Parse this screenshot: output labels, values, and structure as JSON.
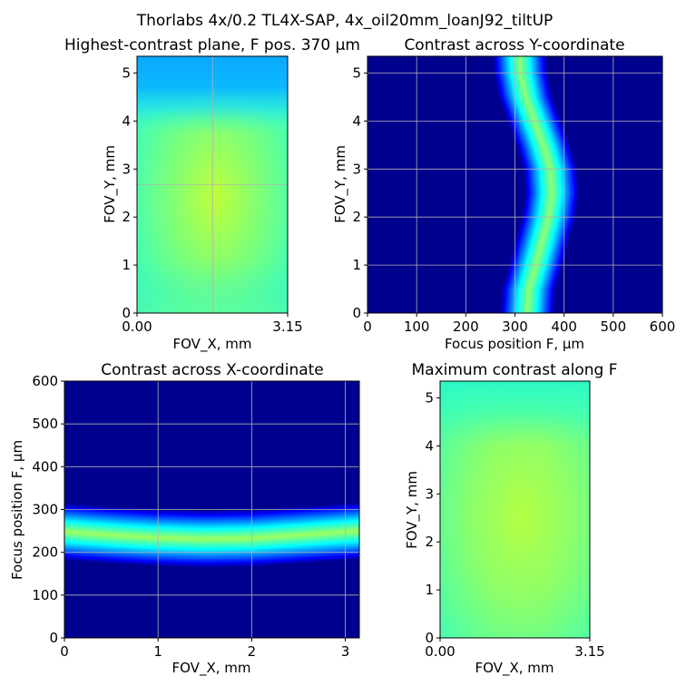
{
  "figure": {
    "suptitle": "Thorlabs 4x/0.2 TL4X-SAP, 4x_oil20mm_loanJ92_tiltUP"
  },
  "colors": {
    "jet_dark_blue": "#00008f",
    "jet_blue": "#0000ff",
    "jet_cyan": "#00ffff",
    "jet_green_yellow": "#a0ff50",
    "grid": "#b0b0b0"
  },
  "chart_data": [
    {
      "type": "heatmap",
      "title": "Highest-contrast plane, F pos. 370 μm",
      "xlabel": "FOV_X, mm",
      "ylabel": "FOV_Y, mm",
      "xlim": [
        0,
        3.15
      ],
      "ylim": [
        0,
        5.35
      ],
      "x_ticks": [
        "0.00",
        "3.15"
      ],
      "y_ticks": [
        "0",
        "1",
        "2",
        "3",
        "4",
        "5"
      ],
      "grid": false,
      "colormap": "jet",
      "crosshair": {
        "x": 1.58,
        "y": 2.68
      },
      "field": {
        "description_values": "normalized contrast 0-1",
        "center": [
          1.45,
          2.5
        ],
        "center_value": 0.66,
        "edge_value": 0.45,
        "top_band_value": 0.3
      }
    },
    {
      "type": "heatmap",
      "title": "Contrast across Y-coordinate",
      "xlabel": "Focus position F, μm",
      "ylabel": "FOV_Y, mm",
      "xlim": [
        0,
        600
      ],
      "ylim": [
        0,
        5.35
      ],
      "x_ticks": [
        "0",
        "100",
        "200",
        "300",
        "400",
        "500",
        "600"
      ],
      "y_ticks": [
        "0",
        "1",
        "2",
        "3",
        "4",
        "5"
      ],
      "grid": true,
      "colormap": "jet",
      "focus_peak_vs_y": [
        {
          "y": 0.0,
          "f": 325
        },
        {
          "y": 0.5,
          "f": 328
        },
        {
          "y": 1.0,
          "f": 342
        },
        {
          "y": 1.5,
          "f": 355
        },
        {
          "y": 2.0,
          "f": 368
        },
        {
          "y": 2.5,
          "f": 375
        },
        {
          "y": 3.0,
          "f": 372
        },
        {
          "y": 3.5,
          "f": 358
        },
        {
          "y": 4.0,
          "f": 340
        },
        {
          "y": 4.5,
          "f": 322
        },
        {
          "y": 5.0,
          "f": 312
        },
        {
          "y": 5.35,
          "f": 310
        }
      ],
      "band_halfwidth_um": 48
    },
    {
      "type": "heatmap",
      "title": "Contrast across X-coordinate",
      "xlabel": "FOV_X, mm",
      "ylabel": "Focus position F, μm",
      "xlim": [
        0,
        3.15
      ],
      "ylim": [
        0,
        600
      ],
      "x_ticks": [
        "0",
        "1",
        "2",
        "3"
      ],
      "y_ticks": [
        "0",
        "100",
        "200",
        "300",
        "400",
        "500",
        "600"
      ],
      "grid": true,
      "colormap": "jet",
      "focus_peak_vs_x": [
        {
          "x": 0.0,
          "f": 248
        },
        {
          "x": 0.5,
          "f": 240
        },
        {
          "x": 1.0,
          "f": 234
        },
        {
          "x": 1.5,
          "f": 231
        },
        {
          "x": 2.0,
          "f": 233
        },
        {
          "x": 2.5,
          "f": 240
        },
        {
          "x": 3.15,
          "f": 250
        }
      ],
      "band_halfwidth_um": 58
    },
    {
      "type": "heatmap",
      "title": "Maximum contrast along F",
      "xlabel": "FOV_X, mm",
      "ylabel": "FOV_Y, mm",
      "xlim": [
        0,
        3.15
      ],
      "ylim": [
        0,
        5.35
      ],
      "x_ticks": [
        "0.00",
        "3.15"
      ],
      "y_ticks": [
        "0",
        "1",
        "2",
        "3",
        "4",
        "5"
      ],
      "grid": false,
      "colormap": "jet",
      "field": {
        "description_values": "normalized contrast 0-1",
        "center": [
          1.5,
          2.6
        ],
        "center_value": 0.7,
        "edge_value": 0.5,
        "top_band_value": 0.42
      }
    }
  ]
}
